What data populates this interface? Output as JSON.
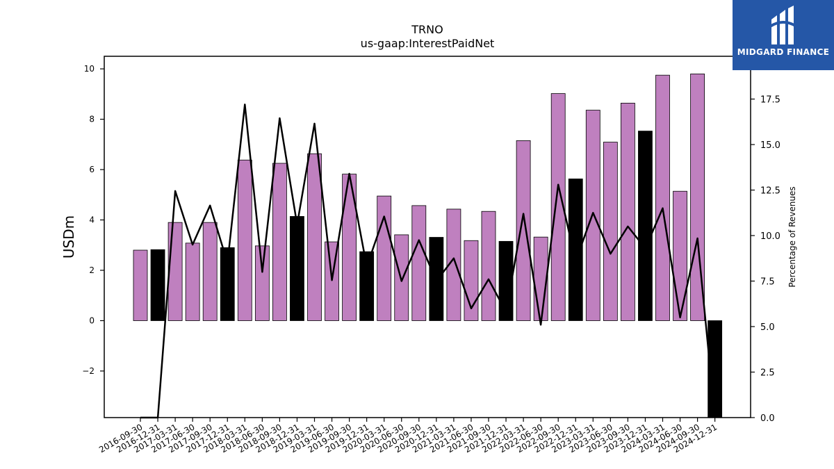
{
  "logo": {
    "text": "MIDGARD FINANCE",
    "icon": "midgard-logo-icon"
  },
  "chart_data": {
    "type": "bar",
    "title": "TRNO",
    "subtitle": "us-gaap:InterestPaidNet",
    "ylabel": "USDm",
    "y2label": "Percentage of Revenues",
    "ylim": [
      -3.85,
      10.5
    ],
    "y2lim": [
      0.0,
      19.85
    ],
    "yticks": [
      "−2",
      "0",
      "2",
      "4",
      "6",
      "8",
      "10"
    ],
    "y2ticks": [
      "0.0",
      "2.5",
      "5.0",
      "7.5",
      "10.0",
      "12.5",
      "15.0",
      "17.5"
    ],
    "colors": {
      "q_bar": "#bf80bf",
      "annual_bar": "#000000",
      "line": "#000000"
    },
    "categories": [
      "2016-09-30",
      "2016-12-31",
      "2017-03-31",
      "2017-06-30",
      "2017-09-30",
      "2017-12-31",
      "2018-03-31",
      "2018-06-30",
      "2018-09-30",
      "2018-12-31",
      "2019-03-31",
      "2019-06-30",
      "2019-09-30",
      "2019-12-31",
      "2020-03-31",
      "2020-06-30",
      "2020-09-30",
      "2020-12-31",
      "2021-03-31",
      "2021-06-30",
      "2021-09-30",
      "2021-12-31",
      "2022-03-31",
      "2022-06-30",
      "2022-09-30",
      "2022-12-31",
      "2023-03-31",
      "2023-06-30",
      "2023-09-30",
      "2023-12-31",
      "2024-03-31",
      "2024-06-30",
      "2024-09-30",
      "2024-12-31"
    ],
    "annual": [
      false,
      true,
      false,
      false,
      false,
      true,
      false,
      false,
      false,
      true,
      false,
      false,
      false,
      true,
      false,
      false,
      false,
      true,
      false,
      false,
      false,
      true,
      false,
      false,
      false,
      true,
      false,
      false,
      false,
      true,
      false,
      false,
      false,
      true
    ],
    "series": [
      {
        "values": [
          2.8,
          2.82,
          3.9,
          3.08,
          3.9,
          2.9,
          6.38,
          2.97,
          6.25,
          4.14,
          6.63,
          3.13,
          5.82,
          2.74,
          4.95,
          3.41,
          4.57,
          3.31,
          4.43,
          3.18,
          4.34,
          3.15,
          7.15,
          3.32,
          9.02,
          5.63,
          8.36,
          7.09,
          8.64,
          7.53,
          9.75,
          5.14,
          9.8,
          -3.85
        ]
      },
      {
        "values": [
          0.0,
          0.0,
          12.45,
          9.5,
          11.65,
          8.5,
          17.2,
          8.0,
          16.45,
          10.6,
          16.15,
          7.55,
          13.4,
          8.3,
          11.05,
          7.5,
          9.75,
          7.5,
          8.75,
          6.0,
          7.6,
          5.8,
          11.2,
          5.1,
          12.8,
          8.6,
          11.25,
          9.0,
          10.5,
          9.3,
          11.5,
          5.5,
          9.85,
          0.0
        ]
      }
    ]
  }
}
